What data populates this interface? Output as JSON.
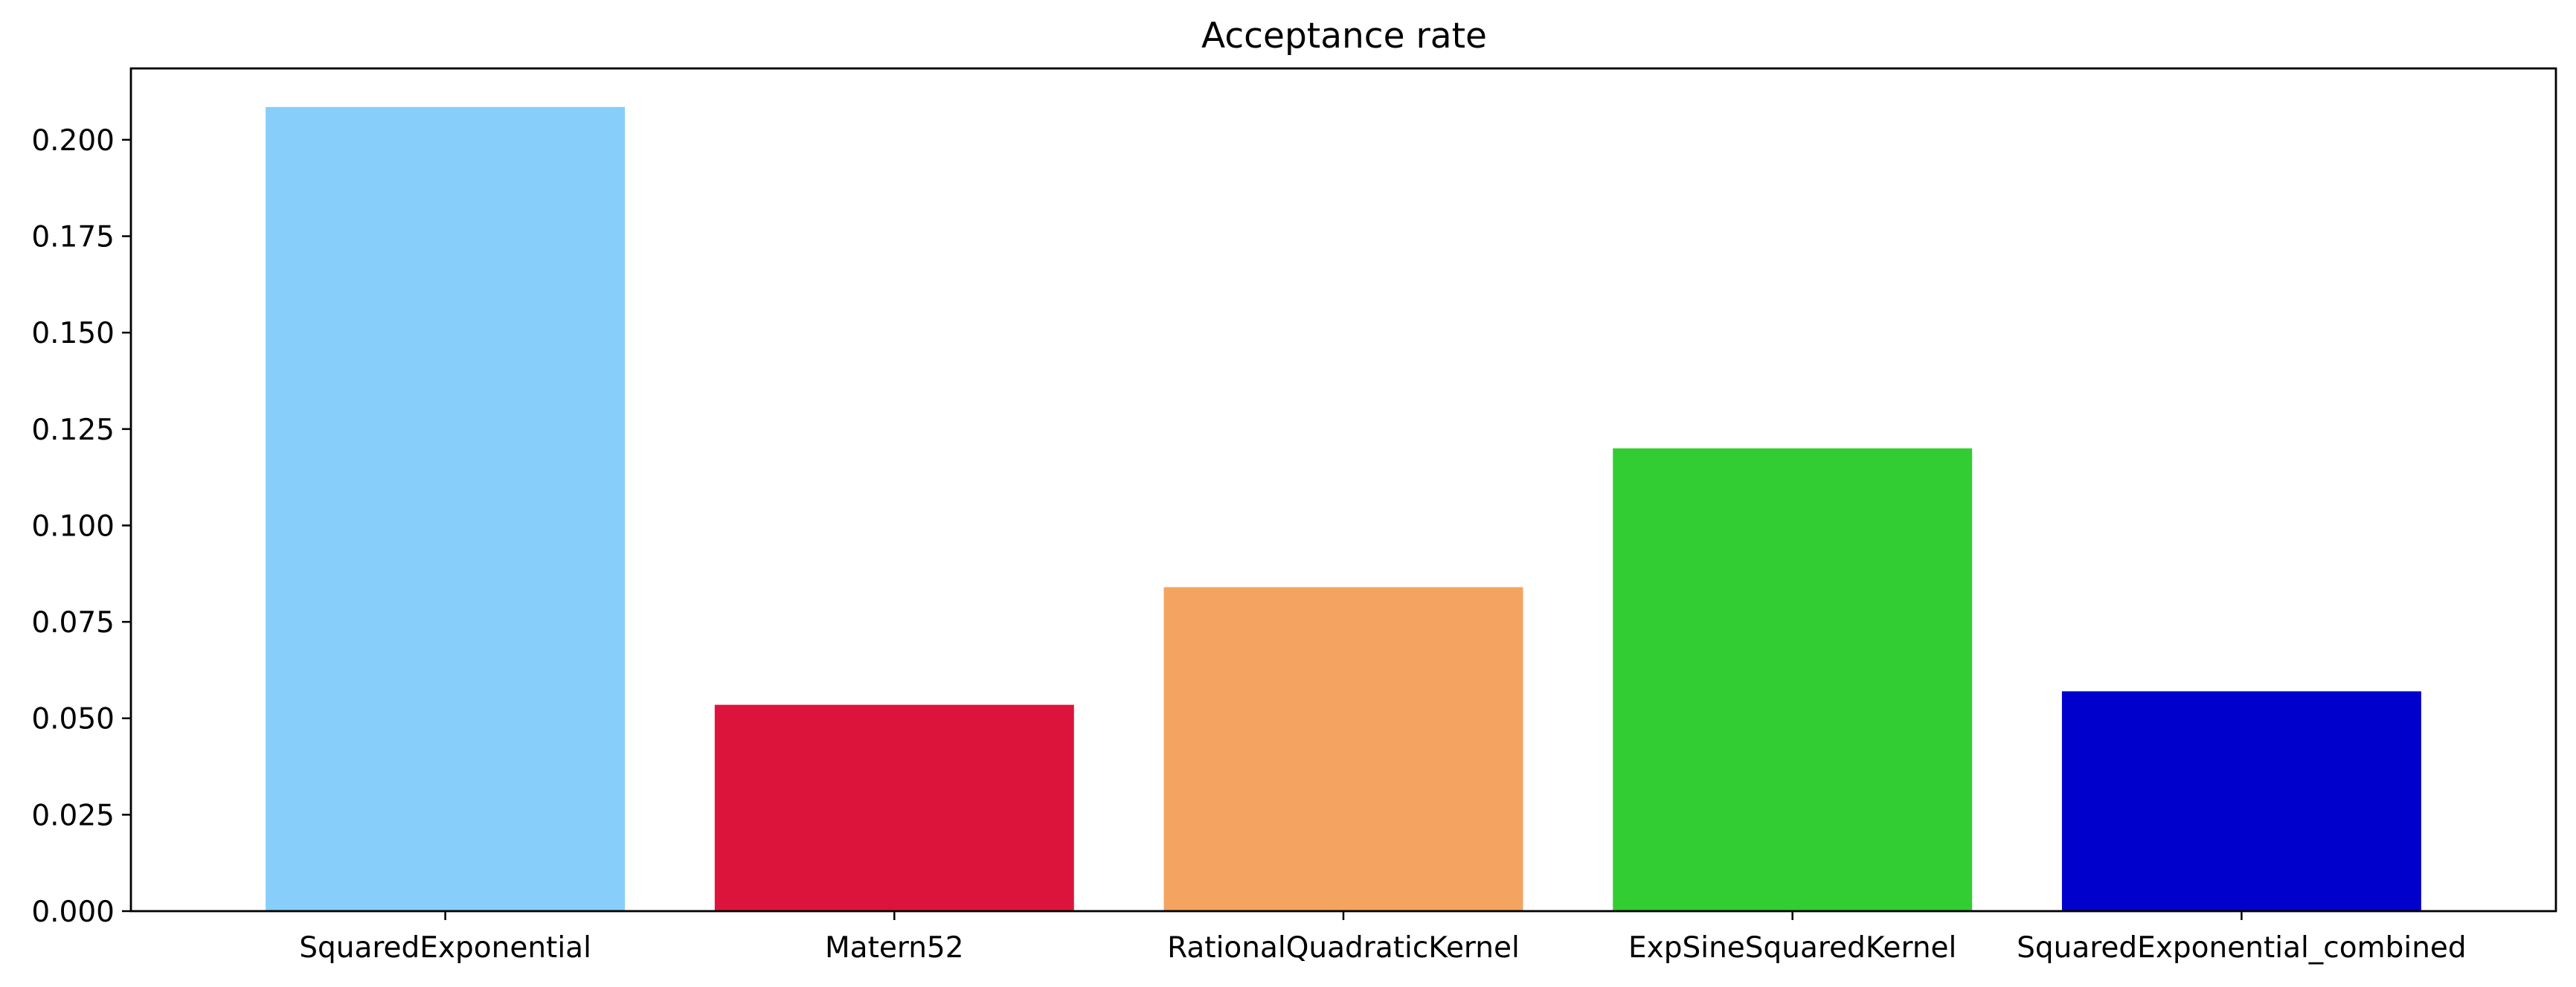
{
  "chart_data": {
    "type": "bar",
    "title": "Acceptance rate",
    "xlabel": "",
    "ylabel": "",
    "categories": [
      "SquaredExponential",
      "Matern52",
      "RationalQuadraticKernel",
      "ExpSineSquaredKernel",
      "SquaredExponential_combined"
    ],
    "values": [
      0.2085,
      0.0535,
      0.084,
      0.12,
      0.057
    ],
    "colors": [
      "#87cefa",
      "#dc143c",
      "#f4a460",
      "#32cd32",
      "#0000cd"
    ],
    "ylim": [
      0,
      0.2185
    ],
    "yticks": [
      0.0,
      0.025,
      0.05,
      0.075,
      0.1,
      0.125,
      0.15,
      0.175,
      0.2
    ],
    "ytick_labels": [
      "0.000",
      "0.025",
      "0.050",
      "0.075",
      "0.100",
      "0.125",
      "0.150",
      "0.175",
      "0.200"
    ],
    "grid": false,
    "legend": "none"
  }
}
